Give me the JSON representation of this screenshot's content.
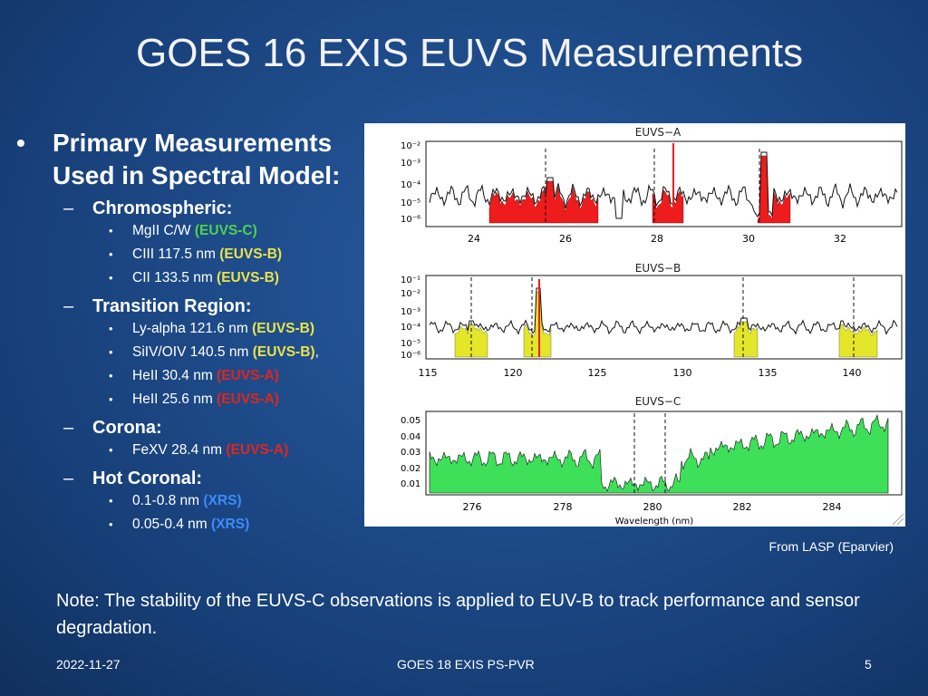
{
  "title": "GOES 16 EXIS EUVS Measurements",
  "bullets": {
    "heading_line1": "Primary Measurements",
    "heading_line2": "Used in Spectral Model:",
    "groups": [
      {
        "label": "Chromospheric:",
        "items": [
          {
            "text": "MgII C/W ",
            "tag": "(EUVS-C)"
          },
          {
            "text": "CIII 117.5 nm ",
            "tag": "(EUVS-B)"
          },
          {
            "text": "CII 133.5 nm ",
            "tag": "(EUVS-B)"
          }
        ]
      },
      {
        "label": "Transition Region:",
        "items": [
          {
            "text": "Ly-alpha 121.6 nm ",
            "tag": "(EUVS-B)"
          },
          {
            "text": "SiIV/OIV 140.5 nm ",
            "tag": "(EUVS-B)",
            "suffix": ","
          },
          {
            "text": "HeII 30.4 nm ",
            "tag": "(EUVS-A)"
          },
          {
            "text": "HeII 25.6 nm ",
            "tag": "(EUVS-A)"
          }
        ]
      },
      {
        "label": "Corona:",
        "items": [
          {
            "text": "FeXV 28.4 nm ",
            "tag": "(EUVS-A)"
          }
        ]
      },
      {
        "label": "Hot Coronal:",
        "items": [
          {
            "text": "0.1-0.8 nm ",
            "tag": "(XRS)"
          },
          {
            "text": "0.05-0.4 nm ",
            "tag": "(XRS)"
          }
        ]
      }
    ]
  },
  "colors": {
    "euvs_a": "#ee1c1c",
    "euvs_b": "#e4e62a",
    "euvs_c": "#3ee05a"
  },
  "figure": {
    "panels": [
      {
        "title": "EUVS−A",
        "yticks": [
          "10⁻²",
          "10⁻³",
          "10⁻⁴",
          "10⁻⁵",
          "10⁻⁶"
        ],
        "xticks": [
          "24",
          "26",
          "28",
          "30",
          "32"
        ]
      },
      {
        "title": "EUVS−B",
        "yticks": [
          "10⁻¹",
          "10⁻²",
          "10⁻³",
          "10⁻⁴",
          "10⁻⁵",
          "10⁻⁶"
        ],
        "xticks": [
          "115",
          "120",
          "125",
          "130",
          "135",
          "140"
        ]
      },
      {
        "title": "EUVS−C",
        "yticks": [
          "0.05",
          "0.04",
          "0.03",
          "0.02",
          "0.01"
        ],
        "xticks": [
          "276",
          "278",
          "280",
          "282",
          "284"
        ]
      }
    ],
    "xlabel": "Wavelength (nm)"
  },
  "credit": "From LASP (Eparvier)",
  "note": "Note:  The stability of the EUVS-C observations is applied to EUV-B to track performance and sensor degradation.",
  "footer": {
    "date": "2022-11-27",
    "center": "GOES 18 EXIS PS-PVR",
    "page": "5"
  }
}
